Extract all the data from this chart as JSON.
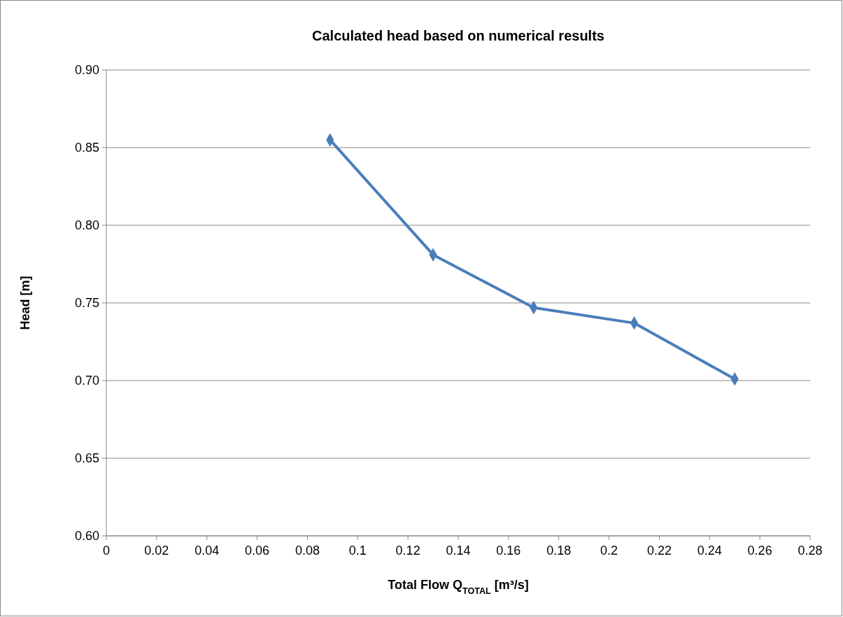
{
  "chart_data": {
    "type": "line",
    "title": "Calculated head based on numerical results",
    "xlabel": "Total Flow Q$_{TOTAL}$ [m³/s]",
    "ylabel": "Head [m]",
    "x": [
      0.089,
      0.13,
      0.17,
      0.21,
      0.25
    ],
    "series": [
      {
        "color": "#4a7ebb",
        "values": [
          0.855,
          0.781,
          0.747,
          0.737,
          0.701
        ]
      }
    ],
    "xlim": [
      0,
      0.28
    ],
    "xticks": [
      0,
      0.02,
      0.04,
      0.06,
      0.08,
      0.1,
      0.12,
      0.14,
      0.16,
      0.18,
      0.2,
      0.22,
      0.24,
      0.26,
      0.28
    ],
    "ylim": [
      0.6,
      0.9
    ],
    "yticks": [
      {
        "value": 0.6,
        "label": "0.60"
      },
      {
        "value": 0.65,
        "label": "0.65"
      },
      {
        "value": 0.7,
        "label": "0.70"
      },
      {
        "value": 0.75,
        "label": "0.75"
      },
      {
        "value": 0.8,
        "label": "0.80"
      },
      {
        "value": 0.85,
        "label": "0.85"
      },
      {
        "value": 0.9,
        "label": "0.90"
      }
    ],
    "grid": "y",
    "marker": "diamond",
    "line_style": "solid"
  }
}
